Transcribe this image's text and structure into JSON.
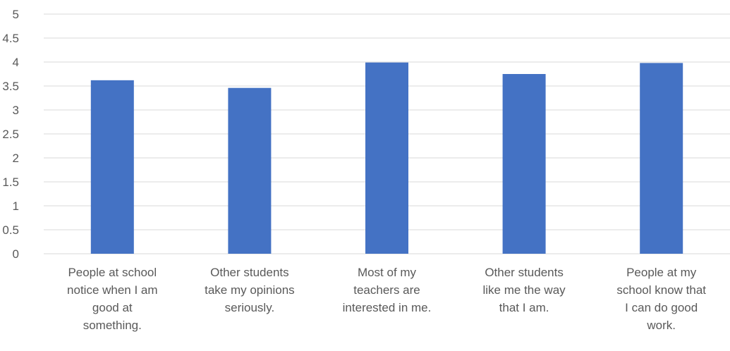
{
  "chart_data": {
    "type": "bar",
    "title": "",
    "xlabel": "",
    "ylabel": "",
    "ylim": [
      0,
      5
    ],
    "ytick_step": 0.5,
    "yticks": [
      "0",
      "0.5",
      "1",
      "1.5",
      "2",
      "2.5",
      "3",
      "3.5",
      "4",
      "4.5",
      "5"
    ],
    "grid": true,
    "legend": "none",
    "bar_color": "#4472C4",
    "categories": [
      [
        "People at school",
        "notice when I am",
        "good at",
        "something."
      ],
      [
        "Other students",
        "take my opinions",
        "seriously."
      ],
      [
        "Most of my",
        "teachers are",
        "interested in me."
      ],
      [
        "Other students",
        "like me the way",
        "that I am."
      ],
      [
        "People at my",
        "school know that",
        "I can do good",
        "work."
      ]
    ],
    "values": [
      3.62,
      3.46,
      3.99,
      3.75,
      3.98
    ]
  }
}
